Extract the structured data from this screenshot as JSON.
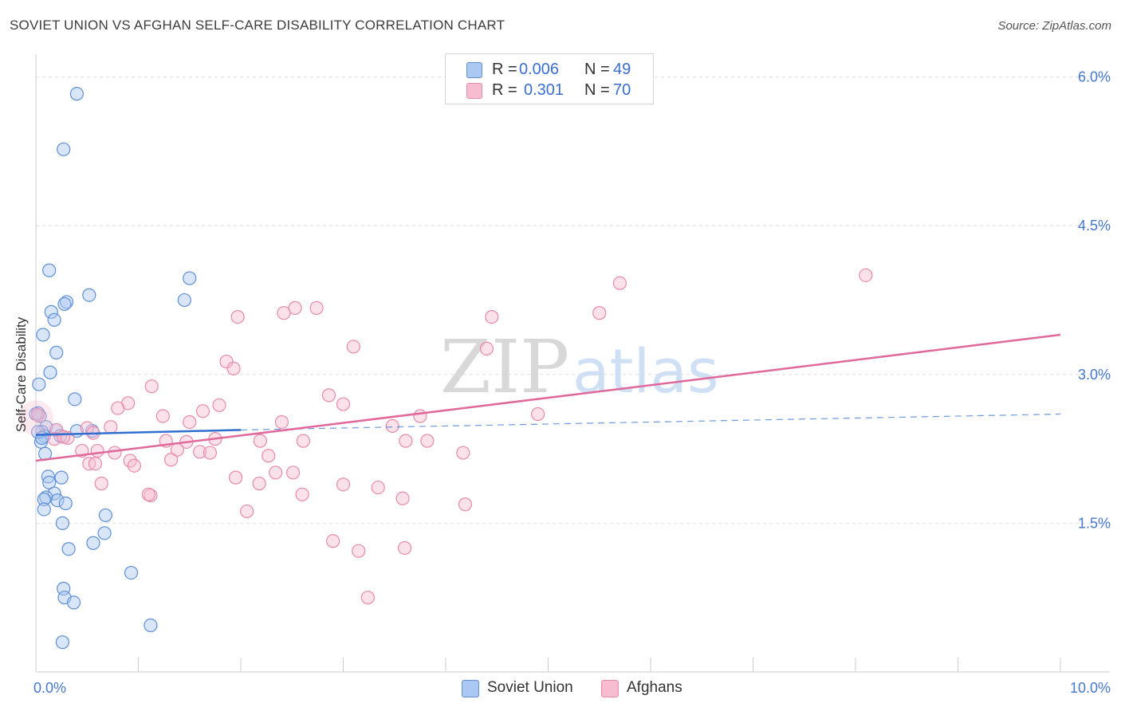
{
  "title": "SOVIET UNION VS AFGHAN SELF-CARE DISABILITY CORRELATION CHART",
  "source": "Source: ZipAtlas.com",
  "watermark": {
    "zip": "ZIP",
    "atlas": "atlas"
  },
  "colors": {
    "soviet_fill": "#aac8f2",
    "soviet_stroke": "#5e8fd8",
    "soviet_line": "#2f6fd0",
    "afghan_fill": "#f7bcd0",
    "afghan_stroke": "#e88aaa",
    "afghan_line": "#e0689a",
    "tick_label": "#4677cf",
    "grid": "#dedede"
  },
  "legend_top": [
    {
      "r_label": "R =",
      "r_value": "0.006",
      "n_label": "N =",
      "n_value": "49",
      "series": "soviet"
    },
    {
      "r_label": "R =",
      "r_value": "0.301",
      "n_label": "N =",
      "n_value": "70",
      "series": "afghan"
    }
  ],
  "legend_bottom": [
    {
      "label": "Soviet Union",
      "series": "soviet"
    },
    {
      "label": "Afghans",
      "series": "afghan"
    }
  ],
  "chart_data": {
    "type": "scatter",
    "title": "SOVIET UNION VS AFGHAN SELF-CARE DISABILITY CORRELATION CHART",
    "xlabel": "",
    "ylabel": "Self-Care Disability",
    "xlim": [
      0,
      10
    ],
    "ylim": [
      0,
      6.2
    ],
    "x_tick_labels": [
      {
        "value": 0,
        "label": "0.0%"
      },
      {
        "value": 10,
        "label": "10.0%"
      }
    ],
    "y_tick_labels": [
      {
        "value": 1.5,
        "label": "1.5%"
      },
      {
        "value": 3.0,
        "label": "3.0%"
      },
      {
        "value": 4.5,
        "label": "4.5%"
      },
      {
        "value": 6.0,
        "label": "6.0%"
      }
    ],
    "grid": true,
    "legend_position": "top-center",
    "series": [
      {
        "name": "Soviet Union",
        "R": 0.006,
        "N": 49,
        "trend": {
          "x": [
            0,
            2
          ],
          "y": [
            2.39,
            2.44
          ],
          "dashed_extension": {
            "x": [
              2,
              10
            ],
            "y": [
              2.44,
              2.6
            ]
          }
        },
        "points": [
          [
            0.4,
            5.83
          ],
          [
            0.27,
            5.27
          ],
          [
            0.13,
            4.05
          ],
          [
            0.52,
            3.8
          ],
          [
            0.3,
            3.73
          ],
          [
            0.28,
            3.71
          ],
          [
            0.15,
            3.63
          ],
          [
            0.18,
            3.55
          ],
          [
            0.07,
            3.4
          ],
          [
            0.2,
            3.22
          ],
          [
            0.14,
            3.02
          ],
          [
            0.03,
            2.9
          ],
          [
            0.38,
            2.75
          ],
          [
            0.02,
            2.61
          ],
          [
            0.04,
            2.58
          ],
          [
            0.1,
            2.47
          ],
          [
            0.06,
            2.42
          ],
          [
            0.2,
            2.44
          ],
          [
            0.4,
            2.43
          ],
          [
            0.55,
            2.43
          ],
          [
            0.08,
            2.38
          ],
          [
            0.24,
            2.38
          ],
          [
            0.05,
            2.32
          ],
          [
            0.09,
            2.2
          ],
          [
            0.12,
            1.97
          ],
          [
            0.25,
            1.96
          ],
          [
            0.13,
            1.91
          ],
          [
            0.18,
            1.8
          ],
          [
            0.1,
            1.76
          ],
          [
            0.08,
            1.74
          ],
          [
            0.21,
            1.73
          ],
          [
            0.29,
            1.7
          ],
          [
            0.08,
            1.64
          ],
          [
            0.26,
            1.5
          ],
          [
            0.68,
            1.58
          ],
          [
            0.67,
            1.4
          ],
          [
            0.56,
            1.3
          ],
          [
            0.32,
            1.24
          ],
          [
            0.93,
            1.0
          ],
          [
            0.27,
            0.84
          ],
          [
            0.28,
            0.75
          ],
          [
            0.37,
            0.7
          ],
          [
            1.12,
            0.47
          ],
          [
            0.26,
            0.3
          ],
          [
            1.5,
            3.97
          ],
          [
            1.45,
            3.75
          ],
          [
            0.0,
            2.6
          ],
          [
            0.02,
            2.42
          ],
          [
            0.06,
            2.36
          ]
        ]
      },
      {
        "name": "Afghans",
        "R": 0.301,
        "N": 70,
        "trend": {
          "x": [
            0,
            10
          ],
          "y": [
            2.13,
            3.4
          ]
        },
        "points": [
          [
            8.1,
            4.0
          ],
          [
            5.7,
            3.92
          ],
          [
            2.53,
            3.67
          ],
          [
            2.74,
            3.67
          ],
          [
            2.42,
            3.62
          ],
          [
            5.5,
            3.62
          ],
          [
            1.97,
            3.58
          ],
          [
            4.45,
            3.58
          ],
          [
            3.1,
            3.28
          ],
          [
            4.4,
            3.26
          ],
          [
            1.86,
            3.13
          ],
          [
            1.93,
            3.06
          ],
          [
            1.13,
            2.88
          ],
          [
            2.86,
            2.79
          ],
          [
            0.9,
            2.71
          ],
          [
            3.0,
            2.7
          ],
          [
            1.79,
            2.69
          ],
          [
            0.8,
            2.66
          ],
          [
            1.63,
            2.63
          ],
          [
            4.9,
            2.6
          ],
          [
            1.24,
            2.58
          ],
          [
            3.75,
            2.58
          ],
          [
            1.5,
            2.52
          ],
          [
            2.4,
            2.52
          ],
          [
            3.48,
            2.48
          ],
          [
            0.5,
            2.46
          ],
          [
            0.73,
            2.47
          ],
          [
            0.2,
            2.44
          ],
          [
            0.56,
            2.41
          ],
          [
            1.75,
            2.35
          ],
          [
            0.18,
            2.35
          ],
          [
            0.31,
            2.36
          ],
          [
            1.27,
            2.33
          ],
          [
            2.19,
            2.33
          ],
          [
            3.61,
            2.33
          ],
          [
            3.82,
            2.33
          ],
          [
            2.61,
            2.33
          ],
          [
            1.47,
            2.32
          ],
          [
            0.27,
            2.37
          ],
          [
            0.45,
            2.23
          ],
          [
            0.6,
            2.23
          ],
          [
            1.38,
            2.24
          ],
          [
            1.6,
            2.22
          ],
          [
            1.7,
            2.21
          ],
          [
            0.77,
            2.21
          ],
          [
            2.27,
            2.18
          ],
          [
            4.17,
            2.21
          ],
          [
            1.32,
            2.14
          ],
          [
            0.92,
            2.13
          ],
          [
            0.52,
            2.1
          ],
          [
            0.58,
            2.1
          ],
          [
            0.96,
            2.08
          ],
          [
            2.34,
            2.01
          ],
          [
            2.51,
            2.01
          ],
          [
            1.95,
            1.96
          ],
          [
            2.18,
            1.9
          ],
          [
            0.64,
            1.9
          ],
          [
            3.0,
            1.89
          ],
          [
            3.34,
            1.86
          ],
          [
            1.12,
            1.78
          ],
          [
            1.1,
            1.79
          ],
          [
            2.6,
            1.79
          ],
          [
            3.58,
            1.75
          ],
          [
            4.19,
            1.69
          ],
          [
            2.06,
            1.62
          ],
          [
            2.9,
            1.32
          ],
          [
            3.6,
            1.25
          ],
          [
            3.15,
            1.22
          ],
          [
            3.24,
            0.75
          ],
          [
            0.02,
            2.59
          ]
        ]
      }
    ]
  }
}
